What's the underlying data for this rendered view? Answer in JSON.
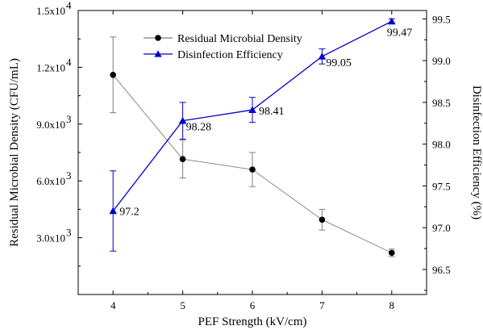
{
  "chart_data": {
    "type": "line",
    "x": [
      4,
      5,
      6,
      7,
      8
    ],
    "xlabel": "PEF Strength  (kV/cm)",
    "ylabel_left": "Residual Microbial Density (CFU/mL)",
    "ylabel_right": "Disinfection Efficiency (%)",
    "xlim": [
      3.5,
      8.5
    ],
    "ylim_left": [
      0,
      15000
    ],
    "ylim_right": [
      96.2,
      99.6
    ],
    "xticks": [
      "4",
      "5",
      "6",
      "7",
      "8"
    ],
    "yticks_left": [
      {
        "value": 3000,
        "label": "3.0x10",
        "exp": "3"
      },
      {
        "value": 6000,
        "label": "6.0x10",
        "exp": "3"
      },
      {
        "value": 9000,
        "label": "9.0x10",
        "exp": "3"
      },
      {
        "value": 12000,
        "label": "1.2x10",
        "exp": "4"
      },
      {
        "value": 15000,
        "label": "1.5x10",
        "exp": "4"
      }
    ],
    "yticks_right": [
      "96.5",
      "97.0",
      "97.5",
      "98.0",
      "98.5",
      "99.0",
      "99.5"
    ],
    "grid": false,
    "legend_position": "top-center",
    "series": [
      {
        "name": "Residual Microbial Density",
        "axis": "left",
        "color": "#000000",
        "line_color": "#7f7f7f",
        "marker": "circle",
        "values": [
          11600,
          7150,
          6600,
          3950,
          2200
        ],
        "errors": [
          2000,
          1000,
          900,
          550,
          200
        ]
      },
      {
        "name": "Disinfection Efficiency",
        "axis": "right",
        "color": "#0000cc",
        "line_color": "#0000cc",
        "marker": "triangle",
        "values": [
          97.2,
          98.28,
          98.41,
          99.05,
          99.47
        ],
        "errors": [
          0.48,
          0.22,
          0.15,
          0.09,
          0.03
        ],
        "data_labels": [
          "97.2",
          "98.28",
          "98.41",
          "99.05",
          "99.47"
        ]
      }
    ]
  }
}
